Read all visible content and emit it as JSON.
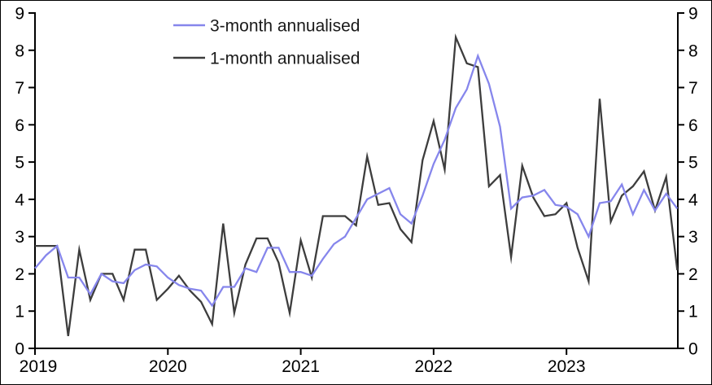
{
  "chart_data": {
    "type": "line",
    "title": "",
    "x_unit": "month",
    "x_start": "2019-01",
    "x_end": "2023-11",
    "xtick_labels": [
      "2019",
      "2020",
      "2021",
      "2022",
      "2023"
    ],
    "xtick_month_index": [
      0,
      12,
      24,
      36,
      48
    ],
    "ylim": [
      0,
      9
    ],
    "yticks": [
      0,
      1,
      2,
      3,
      4,
      5,
      6,
      7,
      8,
      9
    ],
    "y_axis_sides": "both",
    "grid": false,
    "legend_position": "top-left-inside",
    "series": [
      {
        "name": "1-month annualised",
        "color": "#3d3d3d",
        "values": [
          2.75,
          2.75,
          2.75,
          0.33,
          2.65,
          1.3,
          2.0,
          2.0,
          1.3,
          2.65,
          2.65,
          1.3,
          1.6,
          1.95,
          1.55,
          1.25,
          0.65,
          3.35,
          0.95,
          2.25,
          2.95,
          2.95,
          2.3,
          0.95,
          2.9,
          1.9,
          3.55,
          3.55,
          3.55,
          3.3,
          5.15,
          3.85,
          3.9,
          3.2,
          2.85,
          5.05,
          6.1,
          4.8,
          8.35,
          7.65,
          7.55,
          4.35,
          4.65,
          2.45,
          4.9,
          4.05,
          3.55,
          3.6,
          3.9,
          2.7,
          1.8,
          6.7,
          3.4,
          4.1,
          4.35,
          4.75,
          3.7,
          4.6,
          2.1
        ]
      },
      {
        "name": "3-month annualised",
        "color": "#8686ec",
        "values": [
          2.15,
          2.5,
          2.75,
          1.9,
          1.9,
          1.45,
          2.0,
          1.8,
          1.75,
          2.1,
          2.25,
          2.2,
          1.9,
          1.7,
          1.6,
          1.55,
          1.15,
          1.65,
          1.65,
          2.15,
          2.05,
          2.7,
          2.7,
          2.05,
          2.05,
          1.95,
          2.4,
          2.8,
          3.0,
          3.5,
          4.0,
          4.15,
          4.3,
          3.6,
          3.35,
          4.1,
          4.95,
          5.6,
          6.45,
          6.95,
          7.85,
          7.1,
          5.95,
          3.75,
          4.05,
          4.1,
          4.25,
          3.85,
          3.8,
          3.6,
          3.0,
          3.9,
          3.95,
          4.4,
          3.6,
          4.25,
          3.7,
          4.15,
          3.75
        ]
      }
    ],
    "legend": [
      {
        "label": "3-month annualised",
        "color": "#8686ec"
      },
      {
        "label": "1-month annualised",
        "color": "#3d3d3d"
      }
    ],
    "axis_color": "#000000"
  }
}
